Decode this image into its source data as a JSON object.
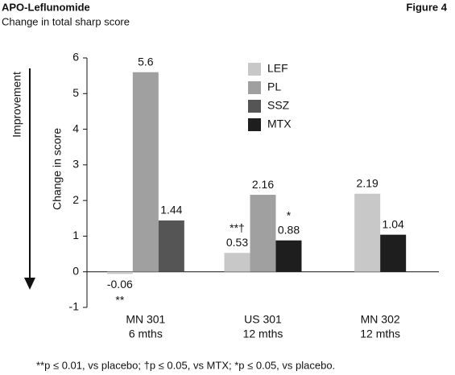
{
  "chart_data": {
    "type": "bar",
    "title": "APO-Leflunomide",
    "subtitle": "Change in total sharp score",
    "figure_label": "Figure 4",
    "y_label": "Change in score",
    "side_label": "Improvement",
    "categories": [
      "MN 301",
      "US 301",
      "MN 302"
    ],
    "category_sublabels": [
      "6 mths",
      "12 mths",
      "12 mths"
    ],
    "series": [
      {
        "name": "LEF",
        "color": "#c8c8c8",
        "values": [
          -0.06,
          0.53,
          2.19
        ]
      },
      {
        "name": "PL",
        "color": "#a0a0a0",
        "values": [
          5.6,
          2.16,
          null
        ]
      },
      {
        "name": "SSZ",
        "color": "#555555",
        "values": [
          1.44,
          null,
          null
        ]
      },
      {
        "name": "MTX",
        "color": "#1e1e1e",
        "values": [
          null,
          0.88,
          1.04
        ]
      }
    ],
    "ylim": [
      -1,
      6
    ],
    "yticks": [
      -1,
      0,
      1,
      2,
      3,
      4,
      5,
      6
    ],
    "annotations": [
      "**",
      "**†",
      "*"
    ],
    "footnote": "**p ≤ 0.01, vs placebo;  †p ≤ 0.05, vs MTX; *p ≤ 0.05, vs placebo."
  }
}
